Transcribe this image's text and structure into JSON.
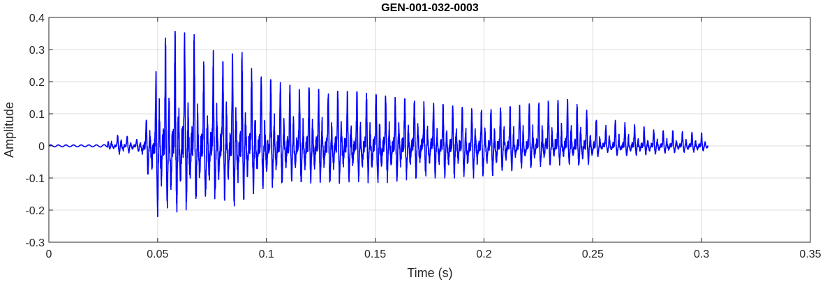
{
  "chart_data": {
    "type": "line",
    "title": "GEN-001-032-0003",
    "xlabel": "Time (s)",
    "ylabel": "Amplitude",
    "xlim": [
      0,
      0.35
    ],
    "ylim": [
      -0.3,
      0.4
    ],
    "xticks": [
      0,
      0.05,
      0.1,
      0.15,
      0.2,
      0.25,
      0.3,
      0.35
    ],
    "xtick_labels": [
      "0",
      "0.05",
      "0.1",
      "0.15",
      "0.2",
      "0.25",
      "0.3",
      "0.35"
    ],
    "yticks": [
      -0.3,
      -0.2,
      -0.1,
      0,
      0.1,
      0.2,
      0.3,
      0.4
    ],
    "ytick_labels": [
      "-0.3",
      "-0.2",
      "-0.1",
      "0",
      "0.1",
      "0.2",
      "0.3",
      "0.4"
    ],
    "grid": true,
    "series": [
      {
        "color": "#0000ff",
        "envelope": {
          "t": [
            0,
            0.01,
            0.02,
            0.027,
            0.028,
            0.03,
            0.033,
            0.038,
            0.042,
            0.044,
            0.048,
            0.05,
            0.056,
            0.062,
            0.066,
            0.07,
            0.075,
            0.08,
            0.088,
            0.095,
            0.1,
            0.11,
            0.12,
            0.13,
            0.14,
            0.15,
            0.16,
            0.17,
            0.18,
            0.19,
            0.2,
            0.21,
            0.22,
            0.23,
            0.24,
            0.245,
            0.25,
            0.255,
            0.26,
            0.27,
            0.28,
            0.29,
            0.3,
            0.303
          ],
          "max": [
            0.003,
            0.003,
            0.003,
            0.004,
            0.04,
            0.02,
            0.045,
            0.02,
            0.02,
            0.07,
            0.12,
            0.3,
            0.36,
            0.35,
            0.37,
            0.25,
            0.3,
            0.27,
            0.3,
            0.22,
            0.21,
            0.19,
            0.18,
            0.17,
            0.17,
            0.16,
            0.15,
            0.14,
            0.13,
            0.12,
            0.11,
            0.12,
            0.13,
            0.14,
            0.145,
            0.12,
            0.1,
            0.06,
            0.08,
            0.065,
            0.05,
            0.045,
            0.04,
            0.02
          ],
          "min": [
            -0.003,
            -0.003,
            -0.003,
            -0.004,
            -0.01,
            -0.015,
            -0.03,
            -0.02,
            -0.02,
            -0.07,
            -0.15,
            -0.22,
            -0.22,
            -0.21,
            -0.2,
            -0.19,
            -0.18,
            -0.18,
            -0.2,
            -0.14,
            -0.13,
            -0.13,
            -0.12,
            -0.12,
            -0.11,
            -0.12,
            -0.11,
            -0.1,
            -0.1,
            -0.1,
            -0.1,
            -0.08,
            -0.07,
            -0.06,
            -0.06,
            -0.07,
            -0.05,
            -0.015,
            -0.03,
            -0.03,
            -0.025,
            -0.02,
            -0.02,
            -0.01
          ]
        },
        "period_s": 0.0044,
        "duration_s": 0.303
      }
    ]
  }
}
